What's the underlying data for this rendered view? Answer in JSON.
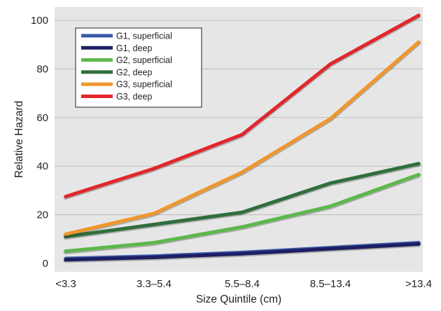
{
  "chart_data": {
    "type": "line",
    "title": "",
    "xlabel": "Size Quintile (cm)",
    "ylabel": "Relative Hazard",
    "categories": [
      "<3.3",
      "3.3–5.4",
      "5.5–8.4",
      "8.5–13.4",
      ">13.4"
    ],
    "ylim": [
      0,
      105
    ],
    "yticks": [
      0,
      20,
      40,
      60,
      80,
      100
    ],
    "grid": true,
    "legend_position": "top-left",
    "series": [
      {
        "name": "G1, superficial",
        "color": "#3a5aa6",
        "values": [
          2,
          3,
          4.5,
          6.5,
          8.5
        ]
      },
      {
        "name": "G1, deep",
        "color": "#1e1e64",
        "values": [
          1.5,
          2.5,
          4,
          6,
          8
        ]
      },
      {
        "name": "G2, superficial",
        "color": "#5cb84c",
        "values": [
          5,
          8.5,
          15,
          23.5,
          36.5
        ]
      },
      {
        "name": "G2, deep",
        "color": "#2f6e3c",
        "values": [
          11,
          16,
          21,
          33,
          41
        ]
      },
      {
        "name": "G3, superficial",
        "color": "#f0962c",
        "values": [
          12,
          20.5,
          37.5,
          59.5,
          91
        ]
      },
      {
        "name": "G3, deep",
        "color": "#e3262b",
        "values": [
          27.5,
          39,
          53,
          82,
          102
        ]
      }
    ]
  }
}
